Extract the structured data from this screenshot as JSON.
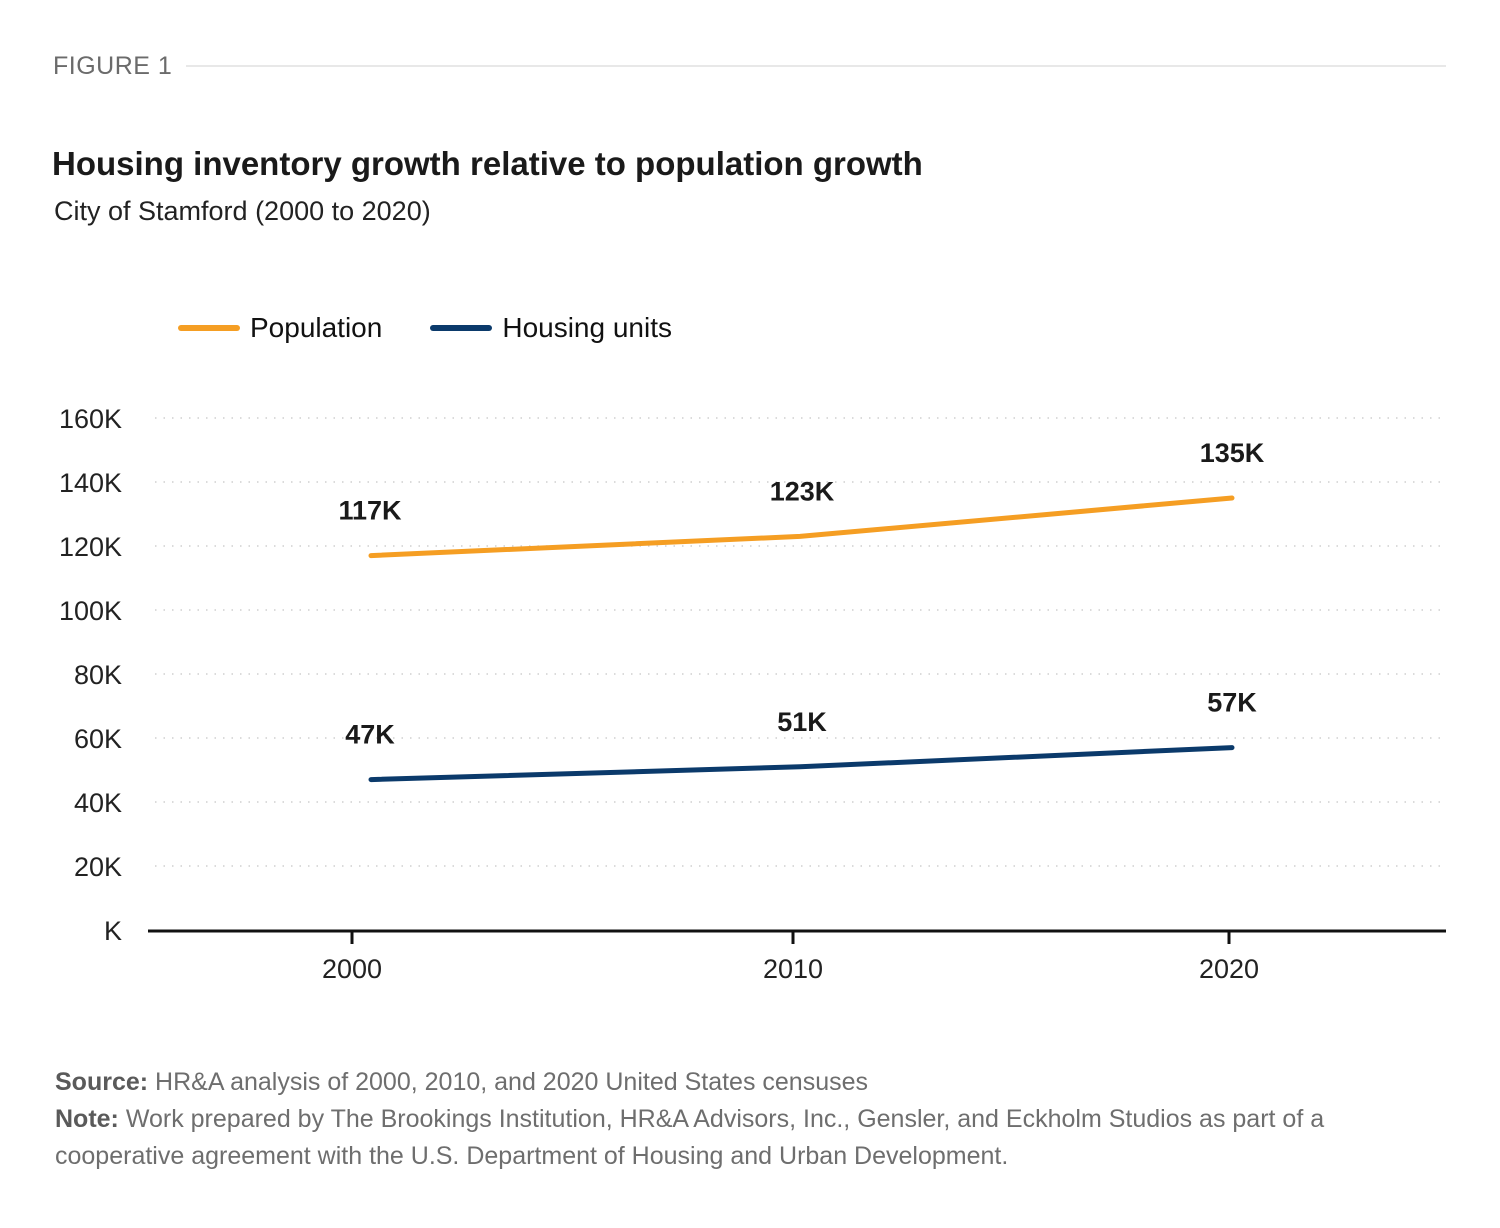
{
  "figure_label": "FIGURE 1",
  "title": "Housing inventory growth relative to population growth",
  "subtitle": "City of Stamford (2000 to 2020)",
  "legend": [
    {
      "name": "Population",
      "color": "#F59E23"
    },
    {
      "name": "Housing units",
      "color": "#0B3A6B"
    }
  ],
  "chart_data": {
    "type": "line",
    "title": "Housing inventory growth relative to population growth",
    "subtitle": "City of Stamford (2000 to 2020)",
    "xlabel": "",
    "ylabel": "",
    "x": [
      "2000",
      "2010",
      "2020"
    ],
    "yticks": [
      "K",
      "20K",
      "40K",
      "60K",
      "80K",
      "100K",
      "120K",
      "140K",
      "160K"
    ],
    "ytick_values": [
      0,
      20,
      40,
      60,
      80,
      100,
      120,
      140,
      160
    ],
    "ylim": [
      0,
      160
    ],
    "yunit": "thousands",
    "grid": "horizontal dotted",
    "legend_position": "top-left",
    "series": [
      {
        "name": "Population",
        "color": "#F59E23",
        "values": [
          117,
          123,
          135
        ],
        "labels": [
          "117K",
          "123K",
          "135K"
        ]
      },
      {
        "name": "Housing units",
        "color": "#0B3A6B",
        "values": [
          47,
          51,
          57
        ],
        "labels": [
          "47K",
          "51K",
          "57K"
        ]
      }
    ]
  },
  "footer": {
    "source_label": "Source:",
    "source_text": " HR&A analysis of 2000, 2010, and 2020 United States censuses",
    "note_label": "Note:",
    "note_text": " Work prepared by The Brookings Institution, HR&A Advisors, Inc., Gensler, and Eckholm Studios as part of a cooperative agreement with the U.S. Department of Housing and Urban Development."
  }
}
